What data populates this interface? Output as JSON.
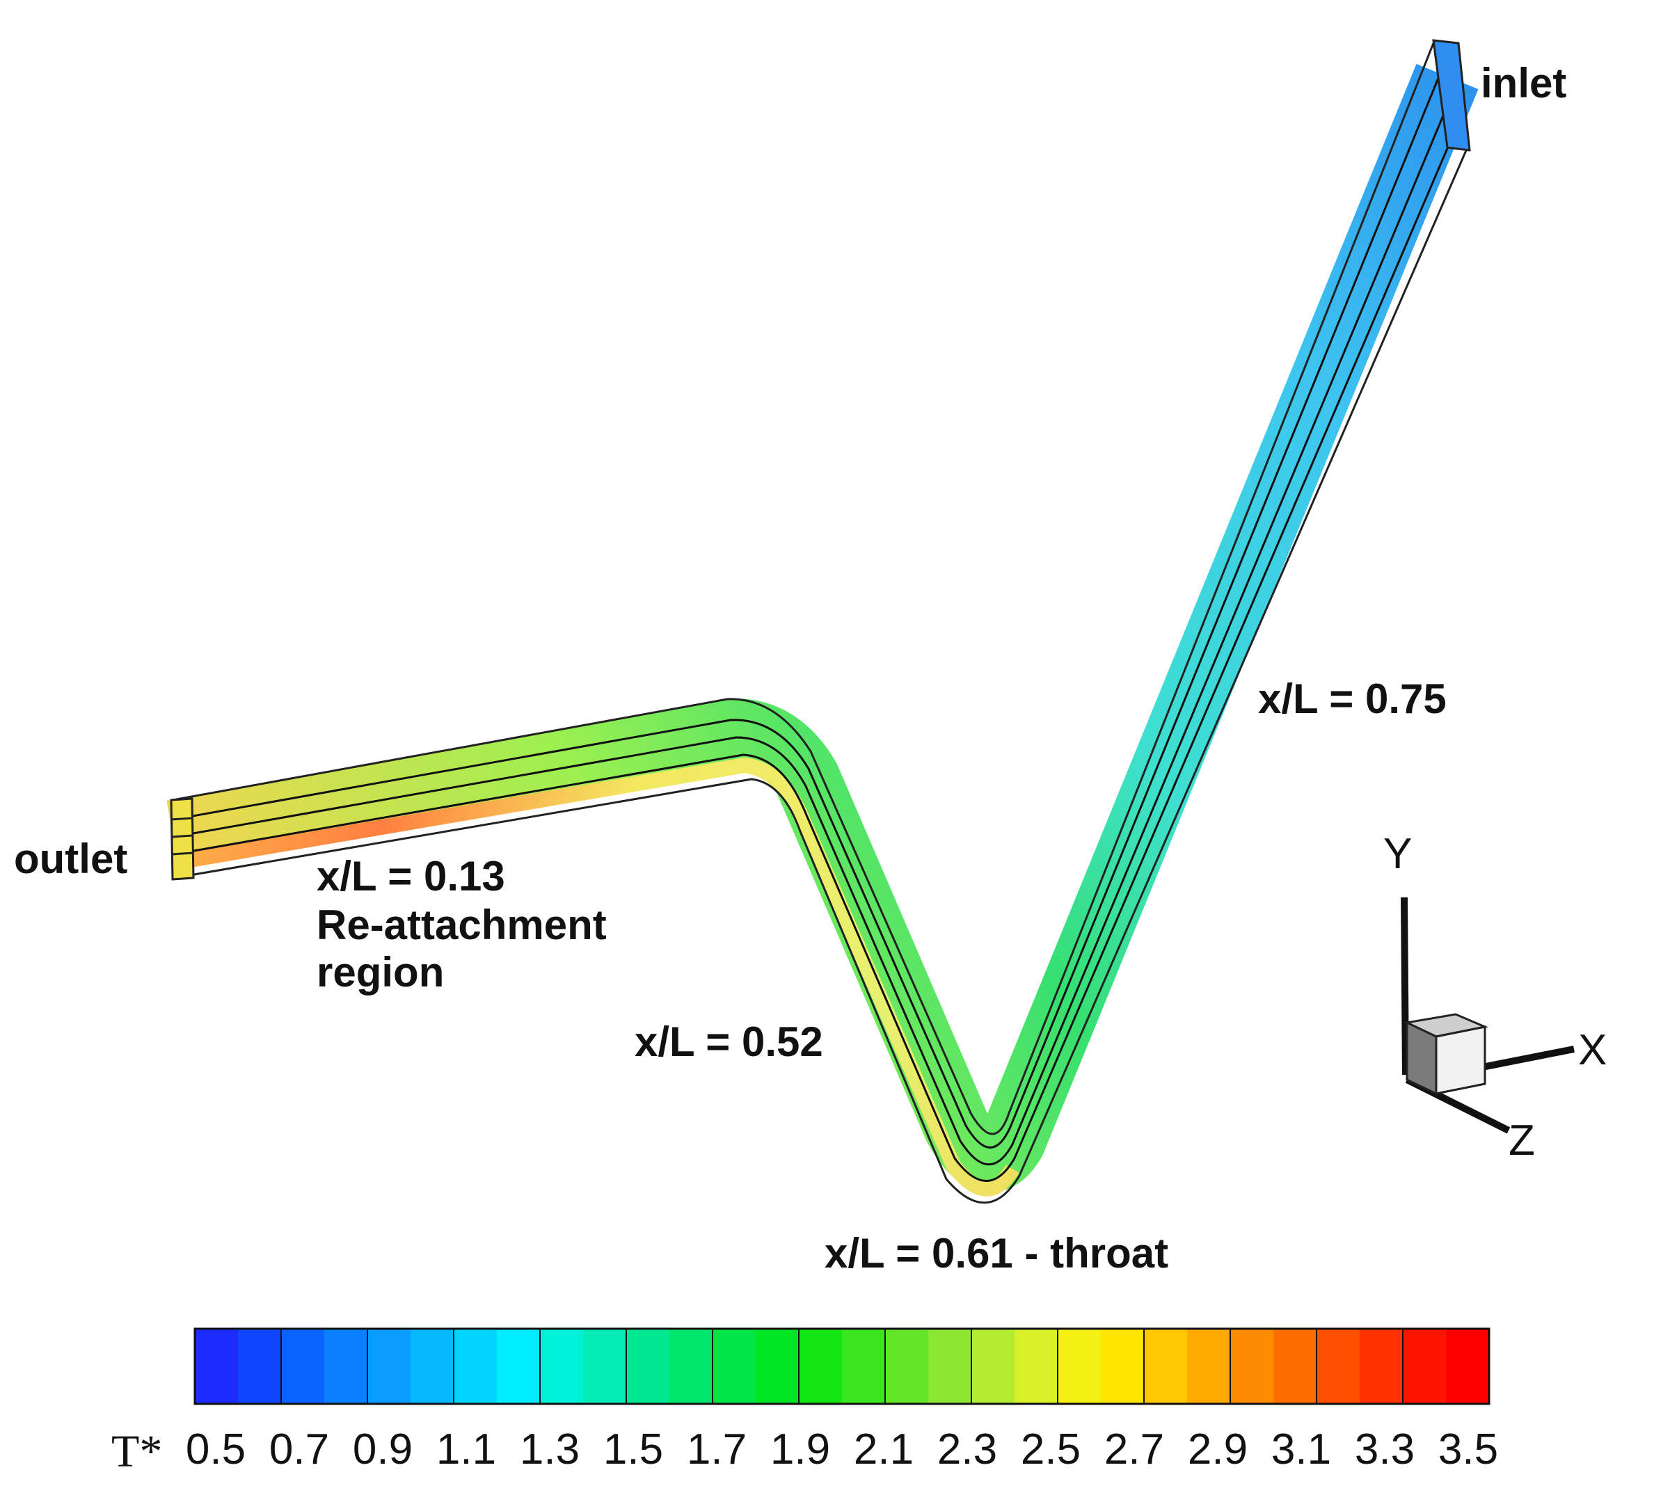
{
  "labels": {
    "inlet": "inlet",
    "outlet": "outlet",
    "station_075": "x/L = 0.75",
    "station_013": "x/L = 0.13",
    "reattach_line1": "Re-attachment",
    "reattach_line2": "region",
    "station_052": "x/L = 0.52",
    "station_061": "x/L = 0.61 - throat"
  },
  "axes_triad": {
    "x": "X",
    "y": "Y",
    "z": "Z"
  },
  "colorbar": {
    "title": "T*",
    "tick_labels": [
      "0.5",
      "0.7",
      "0.9",
      "1.1",
      "1.3",
      "1.5",
      "1.7",
      "1.9",
      "2.1",
      "2.3",
      "2.5",
      "2.7",
      "2.9",
      "3.1",
      "3.3",
      "3.5"
    ],
    "colors": [
      "#1f2cff",
      "#1146ff",
      "#0a63ff",
      "#0a7fff",
      "#0a9cff",
      "#08b8ff",
      "#00d4ff",
      "#00ecff",
      "#00f0d8",
      "#00ecb4",
      "#00e890",
      "#00e66c",
      "#00e648",
      "#00e624",
      "#14e614",
      "#3ce61e",
      "#64e628",
      "#8ce632",
      "#b4ec32",
      "#d8f028",
      "#f4f014",
      "#ffe600",
      "#ffc800",
      "#ffaa00",
      "#ff8c00",
      "#ff6e00",
      "#ff5000",
      "#ff3200",
      "#ff1400",
      "#ff0000"
    ]
  },
  "colors": {
    "inlet_blue": "#3aa0f0",
    "mid_cyan": "#5ee0f0",
    "throat_green": "#3fe06a",
    "outlet_yellow": "#e4f050",
    "hot_orange": "#ff7a30"
  }
}
